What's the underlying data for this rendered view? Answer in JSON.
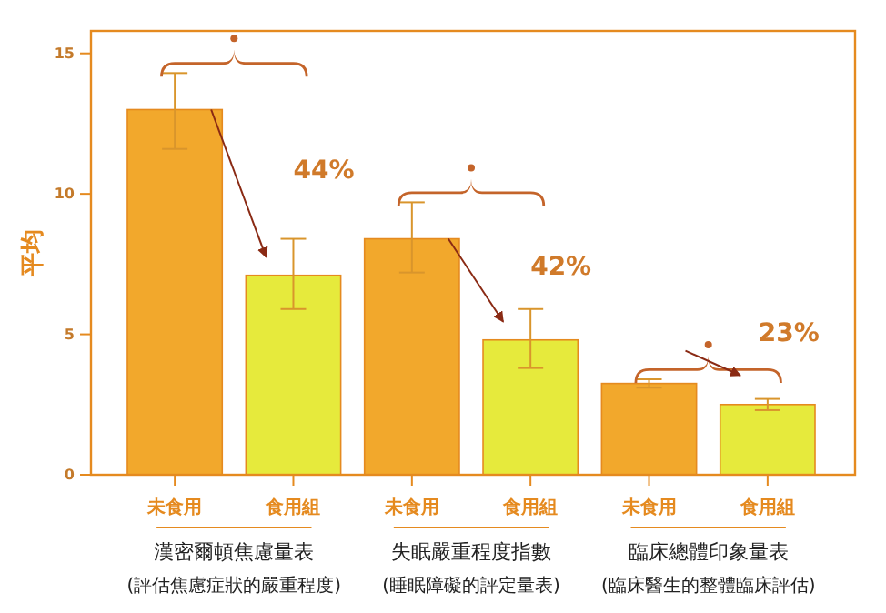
{
  "chart_data": {
    "type": "bar",
    "ylabel": "平均",
    "categories": [
      "未食用",
      "食用組",
      "未食用",
      "食用組",
      "未食用",
      "食用組"
    ],
    "values": [
      13.0,
      7.1,
      8.4,
      4.8,
      3.25,
      2.5
    ],
    "errors": [
      [
        11.6,
        14.3
      ],
      [
        5.9,
        8.4
      ],
      [
        7.2,
        9.7
      ],
      [
        3.8,
        5.9
      ],
      [
        3.1,
        3.4
      ],
      [
        2.3,
        2.7
      ]
    ],
    "colors": [
      "#f2a82c",
      "#e6ea3c",
      "#f2a82c",
      "#e6ea3c",
      "#f2a82c",
      "#e6ea3c"
    ],
    "ylim": [
      0,
      15.8
    ],
    "yticks": [
      0,
      5,
      10,
      15
    ],
    "grid": false,
    "annotations": [
      "44%",
      "42%",
      "23%",
      "漢密爾頓焦慮量表",
      "(評估焦慮症狀的嚴重程度)",
      "失眠嚴重程度指數",
      "(睡眠障礙的評定量表)",
      "臨床總體印象量表",
      "(臨床醫生的整體臨床評估)"
    ]
  }
}
